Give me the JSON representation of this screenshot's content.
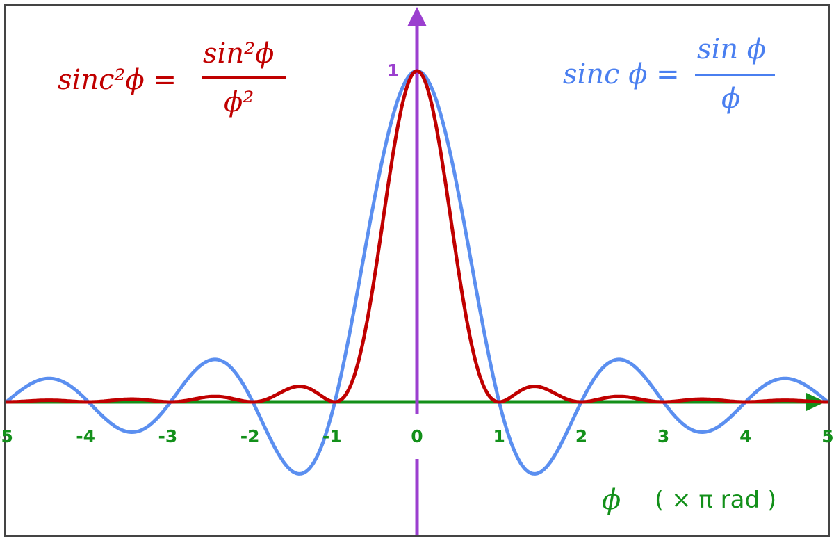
{
  "chart_data": {
    "type": "line",
    "x_range": [
      -5,
      5
    ],
    "y_range": [
      -0.4,
      1.1
    ],
    "grid": false,
    "x_ticks": [
      "-5",
      "-4",
      "-3",
      "-2",
      "-1",
      "0",
      "1",
      "2",
      "3",
      "4",
      "5"
    ],
    "y_ticks": [
      "1"
    ],
    "xlabel": {
      "symbol": "ϕ",
      "unit": "( × π  rad )"
    },
    "series": [
      {
        "name": "sinc ϕ = sin ϕ / ϕ",
        "function": "sin(πx)/(πx)",
        "color": "#5b8ff0",
        "label": {
          "lhs": "sinc ϕ =",
          "num": "sin ϕ",
          "den": "ϕ"
        }
      },
      {
        "name": "sinc²ϕ = sin²ϕ / ϕ²",
        "function": "(sin(πx)/(πx))^2",
        "color": "#c00000",
        "label": {
          "lhs": "sinc²ϕ =",
          "num": "sin²ϕ",
          "den": "ϕ²"
        }
      }
    ],
    "colors": {
      "x_axis": "#13901a",
      "y_axis": "#9b3fcf",
      "frame": "#444444"
    }
  }
}
